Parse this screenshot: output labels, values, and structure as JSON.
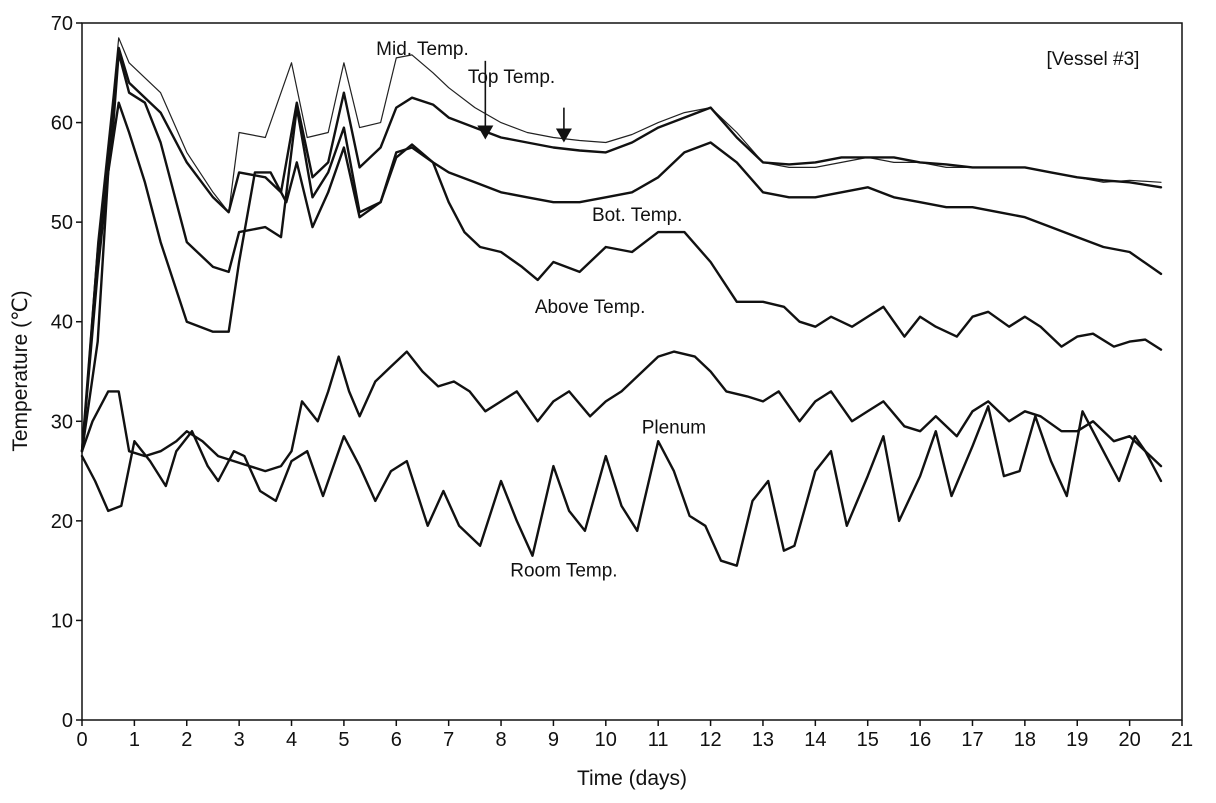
{
  "chart_data": {
    "type": "line",
    "title": "",
    "xlabel": "Time (days)",
    "ylabel": "Temperature (℃)",
    "xlim": [
      0,
      21
    ],
    "ylim": [
      0,
      70
    ],
    "x_ticks": [
      0,
      1,
      2,
      3,
      4,
      5,
      6,
      7,
      8,
      9,
      10,
      11,
      12,
      13,
      14,
      15,
      16,
      17,
      18,
      19,
      20,
      21
    ],
    "y_ticks": [
      0,
      10,
      20,
      30,
      40,
      50,
      60,
      70
    ],
    "grid": false,
    "legend": "none",
    "annotations": [
      {
        "text": "[Vessel #3]",
        "x": 19.3,
        "y": 66.5
      },
      {
        "text": "Mid. Temp.",
        "x": 6.5,
        "y": 67.5
      },
      {
        "text": "Top Temp.",
        "x": 8.2,
        "y": 64.7
      },
      {
        "text": "Bot. Temp.",
        "x": 10.6,
        "y": 50.8
      },
      {
        "text": "Above Temp.",
        "x": 9.7,
        "y": 41.6
      },
      {
        "text": "Plenum",
        "x": 11.3,
        "y": 29.5
      },
      {
        "text": "Room Temp.",
        "x": 9.2,
        "y": 15.1
      }
    ],
    "arrows": [
      {
        "from": [
          7.7,
          66.2
        ],
        "to": [
          7.7,
          58.3
        ]
      },
      {
        "from": [
          9.2,
          61.5
        ],
        "to": [
          9.2,
          58.0
        ]
      }
    ],
    "series": [
      {
        "name": "Mid. Temp.",
        "style": "thin",
        "x": [
          0,
          0.3,
          0.6,
          0.7,
          0.9,
          1.2,
          1.5,
          2.0,
          2.5,
          2.8,
          3.0,
          3.5,
          4.0,
          4.3,
          4.7,
          5.0,
          5.3,
          5.7,
          6.0,
          6.3,
          6.7,
          7.0,
          7.5,
          8.0,
          8.5,
          9.0,
          9.5,
          10.0,
          10.5,
          11.0,
          11.5,
          12.0,
          12.5,
          13.0,
          13.5,
          14.0,
          14.5,
          15.0,
          15.5,
          16.0,
          16.5,
          17.0,
          17.5,
          18.0,
          18.5,
          19.0,
          19.5,
          20.0,
          20.6
        ],
        "y": [
          27,
          48,
          63,
          68.5,
          66,
          64.5,
          63,
          57,
          53,
          51,
          59,
          58.5,
          66,
          58.5,
          59,
          66,
          59.5,
          60,
          66.5,
          66.8,
          65,
          63.5,
          61.5,
          60,
          59,
          58.5,
          58.2,
          58,
          58.8,
          60,
          61,
          61.5,
          59,
          56,
          55.5,
          55.5,
          56,
          56.5,
          56,
          56,
          55.5,
          55.5,
          55.5,
          55.5,
          55,
          54.5,
          54,
          54.2,
          54
        ]
      },
      {
        "name": "Top Temp.",
        "style": "thick",
        "x": [
          0,
          0.3,
          0.6,
          0.7,
          0.9,
          1.2,
          1.5,
          2.0,
          2.5,
          2.8,
          3.0,
          3.5,
          3.8,
          4.1,
          4.4,
          4.7,
          5.0,
          5.3,
          5.7,
          6.0,
          6.3,
          6.7,
          7.0,
          7.5,
          8.0,
          8.5,
          9.0,
          9.5,
          10.0,
          10.5,
          11.0,
          11.5,
          12.0,
          12.5,
          13.0,
          13.5,
          14.0,
          14.5,
          15.0,
          15.5,
          16.0,
          16.5,
          17.0,
          17.5,
          18.0,
          18.5,
          19.0,
          19.5,
          20.0,
          20.6
        ],
        "y": [
          27,
          47,
          62,
          67.5,
          64,
          62.5,
          61,
          56,
          52.5,
          51,
          55,
          54.5,
          53,
          62,
          54.5,
          56,
          63,
          55.5,
          57.5,
          61.5,
          62.5,
          61.8,
          60.5,
          59.5,
          58.5,
          58,
          57.5,
          57.2,
          57,
          58,
          59.5,
          60.5,
          61.5,
          58.5,
          56,
          55.8,
          56,
          56.5,
          56.5,
          56.5,
          56,
          55.8,
          55.5,
          55.5,
          55.5,
          55,
          54.5,
          54.2,
          54,
          53.5
        ]
      },
      {
        "name": "Bot. Temp.",
        "style": "thick",
        "x": [
          0,
          0.3,
          0.6,
          0.7,
          0.9,
          1.2,
          1.5,
          2.0,
          2.5,
          2.8,
          3.0,
          3.5,
          3.8,
          4.1,
          4.4,
          4.7,
          5.0,
          5.3,
          5.7,
          6.0,
          6.3,
          6.7,
          7.0,
          7.5,
          8.0,
          8.5,
          9.0,
          9.5,
          10.0,
          10.5,
          11.0,
          11.5,
          12.0,
          12.5,
          13.0,
          13.5,
          14.0,
          14.5,
          15.0,
          15.5,
          16.0,
          16.5,
          17.0,
          17.5,
          18.0,
          18.5,
          19.0,
          19.5,
          20.0,
          20.6
        ],
        "y": [
          27,
          45,
          60,
          67,
          63,
          62,
          58,
          48,
          45.5,
          45,
          49,
          49.5,
          48.5,
          61.5,
          52.5,
          55,
          59.5,
          51,
          52,
          57,
          57.5,
          56,
          55,
          54,
          53,
          52.5,
          52,
          52,
          52.5,
          53,
          54.5,
          57,
          58,
          56,
          53,
          52.5,
          52.5,
          53,
          53.5,
          52.5,
          52,
          51.5,
          51.5,
          51,
          50.5,
          49.5,
          48.5,
          47.5,
          47,
          44.8
        ]
      },
      {
        "name": "Above Temp.",
        "style": "thick",
        "x": [
          0,
          0.3,
          0.5,
          0.7,
          0.9,
          1.2,
          1.5,
          2.0,
          2.5,
          2.8,
          3.0,
          3.3,
          3.6,
          3.9,
          4.1,
          4.4,
          4.7,
          5.0,
          5.3,
          5.7,
          6.0,
          6.3,
          6.7,
          7.0,
          7.3,
          7.6,
          8.0,
          8.4,
          8.7,
          9.0,
          9.5,
          10.0,
          10.5,
          11.0,
          11.5,
          12.0,
          12.5,
          13.0,
          13.4,
          13.7,
          14.0,
          14.3,
          14.7,
          15.0,
          15.3,
          15.7,
          16.0,
          16.3,
          16.7,
          17.0,
          17.3,
          17.7,
          18.0,
          18.3,
          18.7,
          19.0,
          19.3,
          19.7,
          20.0,
          20.3,
          20.6
        ],
        "y": [
          27,
          38,
          55,
          62,
          59,
          54,
          48,
          40,
          39,
          39,
          46,
          55,
          55,
          52,
          56,
          49.5,
          53,
          57.5,
          50.5,
          52,
          56.5,
          57.8,
          56,
          52,
          49,
          47.5,
          47,
          45.5,
          44.2,
          46,
          45,
          47.5,
          47,
          49,
          49,
          46,
          42,
          42,
          41.5,
          40,
          39.5,
          40.5,
          39.5,
          40.5,
          41.5,
          38.5,
          40.5,
          39.5,
          38.5,
          40.5,
          41,
          39.5,
          40.5,
          39.5,
          37.5,
          38.5,
          38.8,
          37.5,
          38,
          38.2,
          37.2
        ]
      },
      {
        "name": "Plenum",
        "style": "thick",
        "x": [
          0,
          0.2,
          0.5,
          0.7,
          0.9,
          1.2,
          1.5,
          1.8,
          2.0,
          2.3,
          2.6,
          2.9,
          3.2,
          3.5,
          3.8,
          4.0,
          4.2,
          4.5,
          4.7,
          4.9,
          5.1,
          5.3,
          5.6,
          5.9,
          6.2,
          6.5,
          6.8,
          7.1,
          7.4,
          7.7,
          8.0,
          8.3,
          8.7,
          9.0,
          9.3,
          9.7,
          10.0,
          10.3,
          10.6,
          11.0,
          11.3,
          11.7,
          12.0,
          12.3,
          12.7,
          13.0,
          13.3,
          13.7,
          14.0,
          14.3,
          14.7,
          15.0,
          15.3,
          15.7,
          16.0,
          16.3,
          16.7,
          17.0,
          17.3,
          17.7,
          18.0,
          18.3,
          18.7,
          19.0,
          19.3,
          19.7,
          20.0,
          20.3,
          20.6
        ],
        "y": [
          27,
          30,
          33,
          33,
          27,
          26.5,
          27,
          28,
          29,
          28,
          26.5,
          26,
          25.5,
          25,
          25.5,
          27,
          32,
          30,
          33,
          36.5,
          33,
          30.5,
          34,
          35.5,
          37,
          35,
          33.5,
          34,
          33,
          31,
          32,
          33,
          30,
          32,
          33,
          30.5,
          32,
          33,
          34.5,
          36.5,
          37,
          36.5,
          35,
          33,
          32.5,
          32,
          33,
          30,
          32,
          33,
          30,
          31,
          32,
          29.5,
          29,
          30.5,
          28.5,
          31,
          32,
          30,
          31,
          30.5,
          29,
          29,
          30,
          28,
          28.5,
          27,
          25.5
        ]
      },
      {
        "name": "Room Temp.",
        "style": "thick",
        "x": [
          0,
          0.25,
          0.5,
          0.75,
          1.0,
          1.3,
          1.6,
          1.8,
          2.1,
          2.4,
          2.6,
          2.9,
          3.1,
          3.4,
          3.7,
          4.0,
          4.3,
          4.6,
          5.0,
          5.3,
          5.6,
          5.9,
          6.2,
          6.6,
          6.9,
          7.2,
          7.6,
          8.0,
          8.3,
          8.6,
          9.0,
          9.3,
          9.6,
          10.0,
          10.3,
          10.6,
          11.0,
          11.3,
          11.6,
          11.9,
          12.2,
          12.5,
          12.8,
          13.1,
          13.4,
          13.6,
          14.0,
          14.3,
          14.6,
          15.0,
          15.3,
          15.6,
          16.0,
          16.3,
          16.6,
          17.0,
          17.3,
          17.6,
          17.9,
          18.2,
          18.5,
          18.8,
          19.1,
          19.5,
          19.8,
          20.1,
          20.3,
          20.6
        ],
        "y": [
          26.5,
          24,
          21,
          21.5,
          28,
          26,
          23.5,
          27,
          29,
          25.5,
          24,
          27,
          26.5,
          23,
          22,
          26,
          27,
          22.5,
          28.5,
          25.5,
          22,
          25,
          26,
          19.5,
          23,
          19.5,
          17.5,
          24,
          20,
          16.5,
          25.5,
          21,
          19,
          26.5,
          21.5,
          19,
          28,
          25,
          20.5,
          19.5,
          16,
          15.5,
          22,
          24,
          17,
          17.5,
          25,
          27,
          19.5,
          24.5,
          28.5,
          20,
          24.5,
          29,
          22.5,
          27.5,
          31.5,
          24.5,
          25,
          30.5,
          26,
          22.5,
          31,
          27,
          24,
          28.5,
          27,
          24
        ]
      }
    ]
  }
}
